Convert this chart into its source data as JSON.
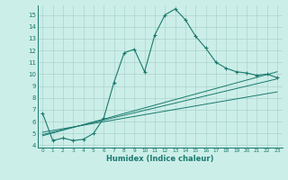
{
  "xlabel": "Humidex (Indice chaleur)",
  "bg_color": "#cceee8",
  "grid_color": "#aad4ce",
  "line_color": "#1a7a6e",
  "xlim": [
    -0.5,
    23.5
  ],
  "ylim": [
    3.8,
    15.8
  ],
  "xticks": [
    0,
    1,
    2,
    3,
    4,
    5,
    6,
    7,
    8,
    9,
    10,
    11,
    12,
    13,
    14,
    15,
    16,
    17,
    18,
    19,
    20,
    21,
    22,
    23
  ],
  "yticks": [
    4,
    5,
    6,
    7,
    8,
    9,
    10,
    11,
    12,
    13,
    14,
    15
  ],
  "line1_x": [
    0,
    1,
    2,
    3,
    4,
    5,
    6,
    7,
    8,
    9,
    10,
    11,
    12,
    13,
    14,
    15,
    16,
    17,
    18,
    19,
    20,
    21,
    22,
    23
  ],
  "line1_y": [
    6.7,
    4.4,
    4.6,
    4.4,
    4.5,
    5.0,
    6.3,
    9.3,
    11.8,
    12.1,
    10.2,
    13.3,
    15.0,
    15.5,
    14.6,
    13.2,
    12.2,
    11.0,
    10.5,
    10.2,
    10.1,
    9.9,
    10.0,
    9.7
  ],
  "line2_x": [
    0,
    23
  ],
  "line2_y": [
    4.8,
    10.2
  ],
  "line3_x": [
    0,
    23
  ],
  "line3_y": [
    4.9,
    9.6
  ],
  "line4_x": [
    0,
    23
  ],
  "line4_y": [
    5.1,
    8.5
  ]
}
